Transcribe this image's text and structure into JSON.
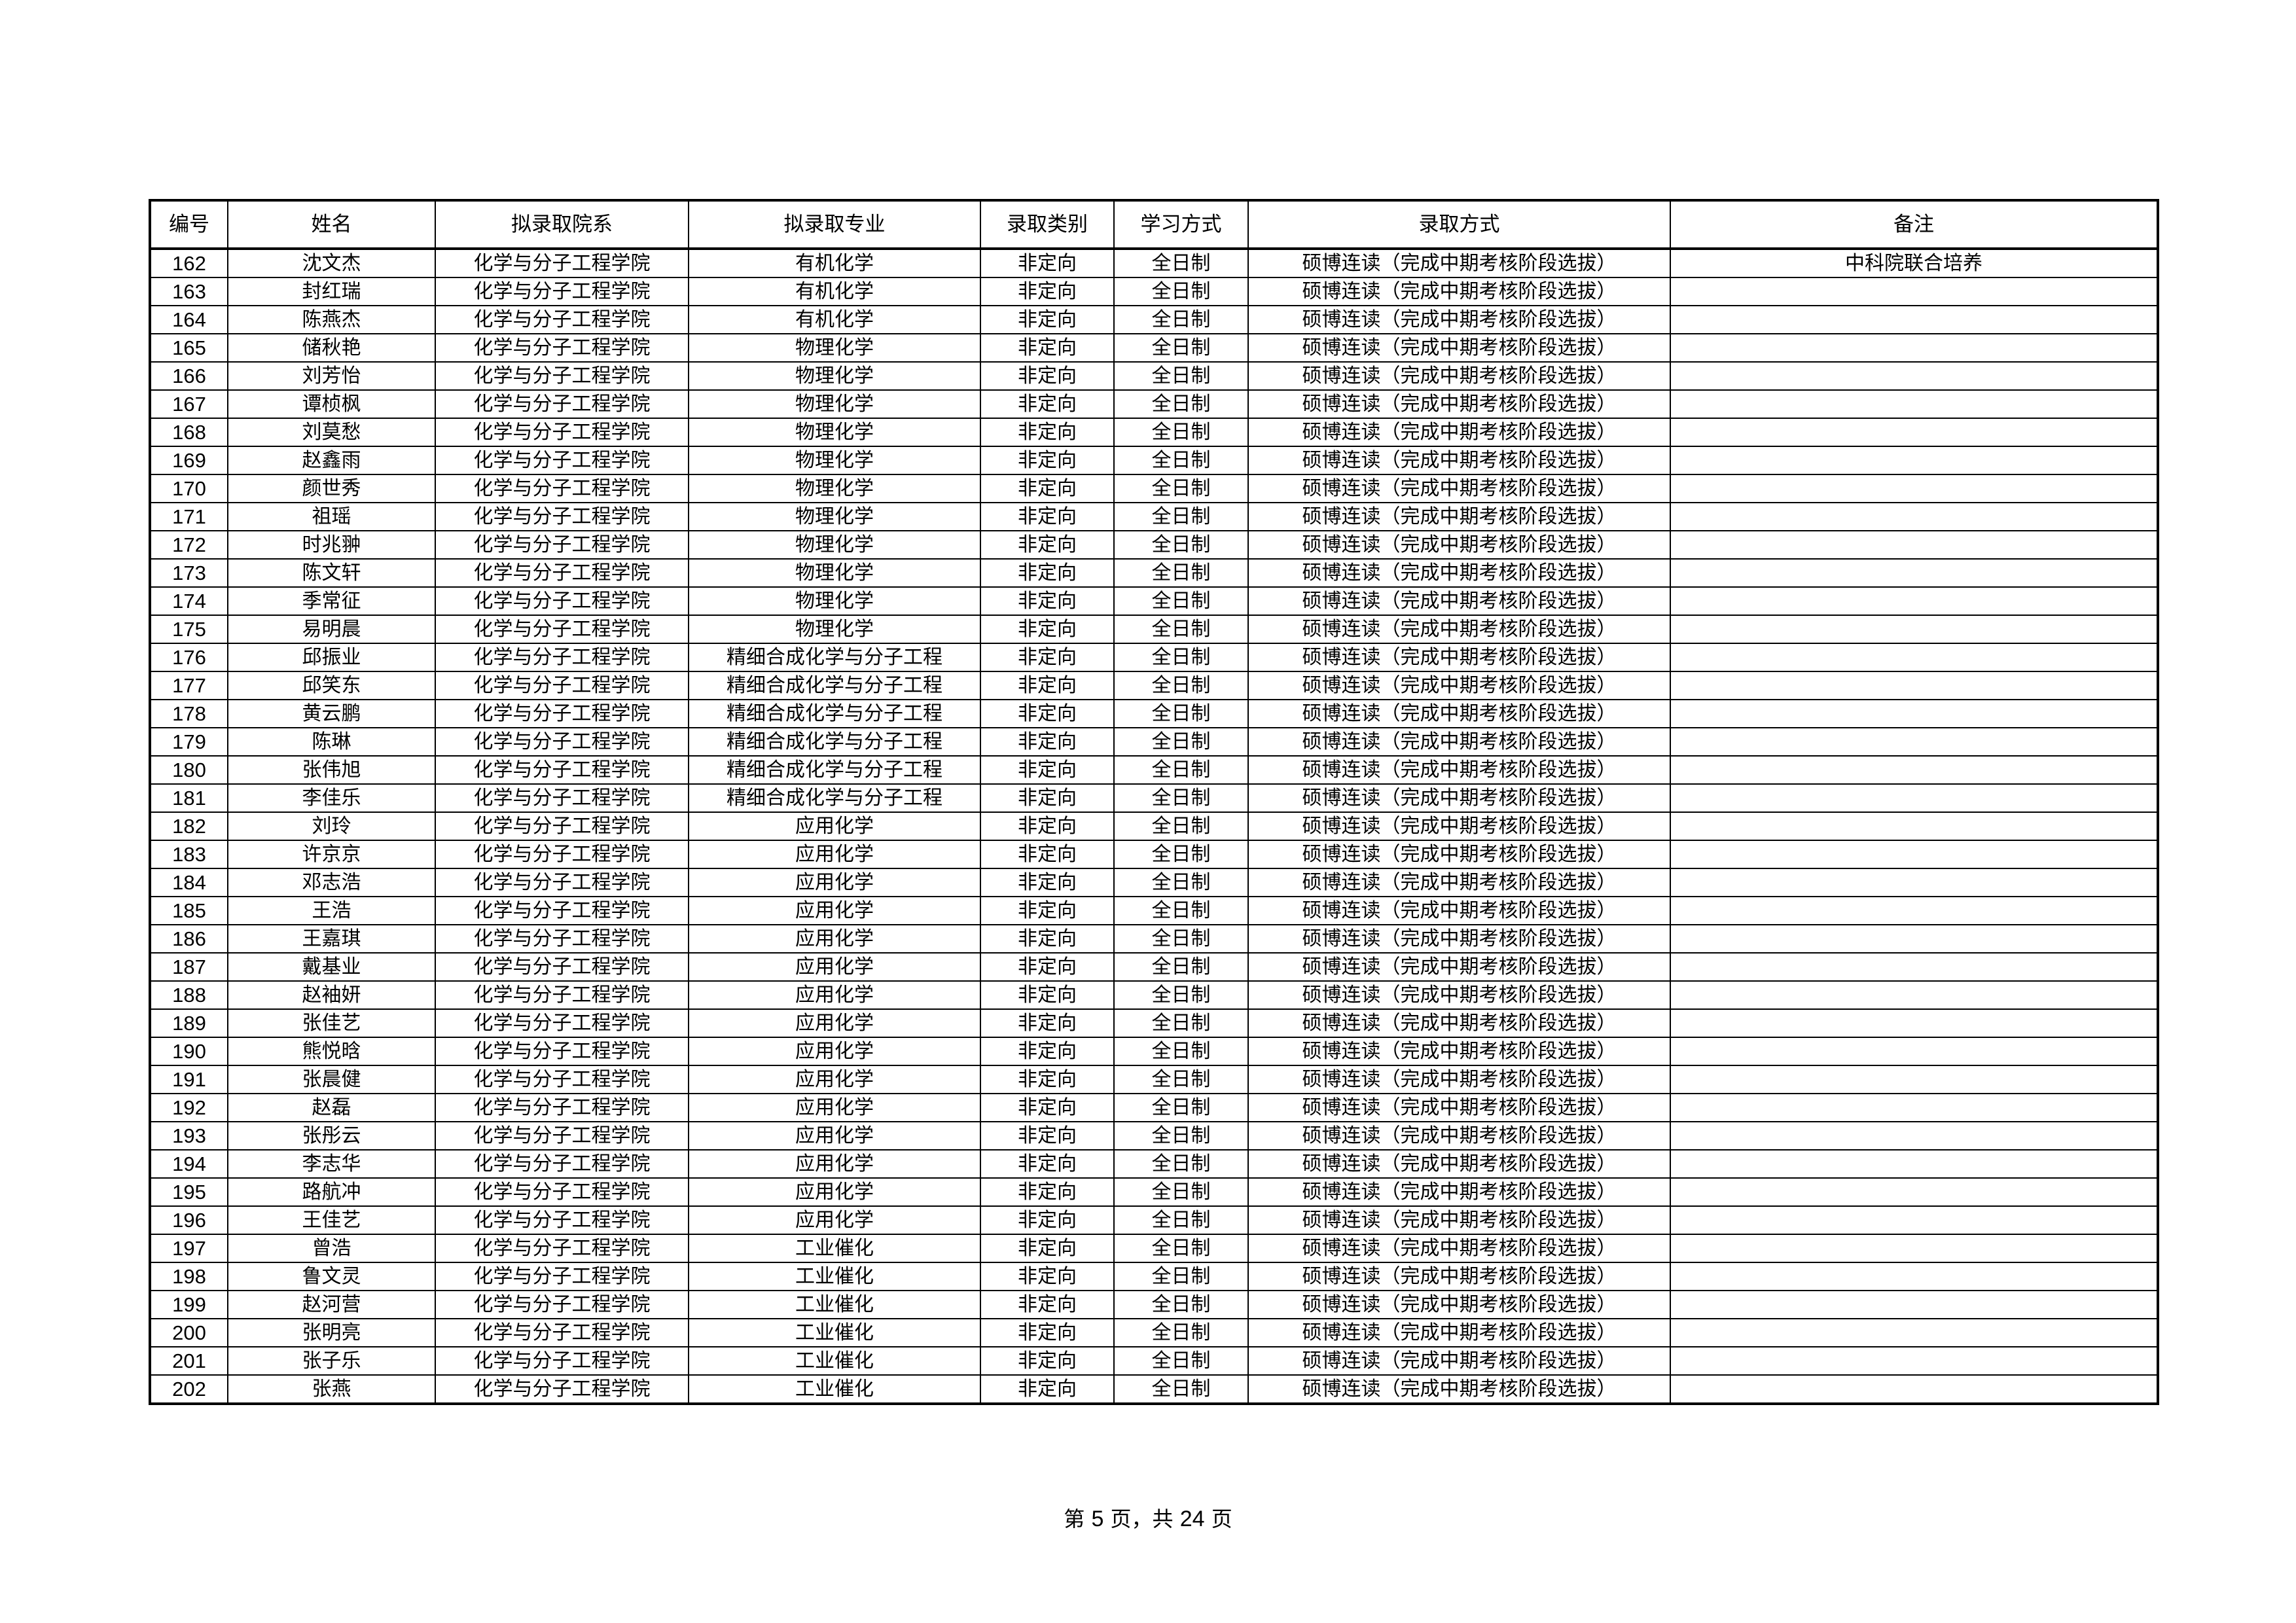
{
  "table": {
    "headers": [
      "编号",
      "姓名",
      "拟录取院系",
      "拟录取专业",
      "录取类别",
      "学习方式",
      "录取方式",
      "备注"
    ],
    "rows": [
      [
        "162",
        "沈文杰",
        "化学与分子工程学院",
        "有机化学",
        "非定向",
        "全日制",
        "硕博连读（完成中期考核阶段选拔）",
        "中科院联合培养"
      ],
      [
        "163",
        "封红瑞",
        "化学与分子工程学院",
        "有机化学",
        "非定向",
        "全日制",
        "硕博连读（完成中期考核阶段选拔）",
        ""
      ],
      [
        "164",
        "陈燕杰",
        "化学与分子工程学院",
        "有机化学",
        "非定向",
        "全日制",
        "硕博连读（完成中期考核阶段选拔）",
        ""
      ],
      [
        "165",
        "储秋艳",
        "化学与分子工程学院",
        "物理化学",
        "非定向",
        "全日制",
        "硕博连读（完成中期考核阶段选拔）",
        ""
      ],
      [
        "166",
        "刘芳怡",
        "化学与分子工程学院",
        "物理化学",
        "非定向",
        "全日制",
        "硕博连读（完成中期考核阶段选拔）",
        ""
      ],
      [
        "167",
        "谭桢枫",
        "化学与分子工程学院",
        "物理化学",
        "非定向",
        "全日制",
        "硕博连读（完成中期考核阶段选拔）",
        ""
      ],
      [
        "168",
        "刘莫愁",
        "化学与分子工程学院",
        "物理化学",
        "非定向",
        "全日制",
        "硕博连读（完成中期考核阶段选拔）",
        ""
      ],
      [
        "169",
        "赵鑫雨",
        "化学与分子工程学院",
        "物理化学",
        "非定向",
        "全日制",
        "硕博连读（完成中期考核阶段选拔）",
        ""
      ],
      [
        "170",
        "颜世秀",
        "化学与分子工程学院",
        "物理化学",
        "非定向",
        "全日制",
        "硕博连读（完成中期考核阶段选拔）",
        ""
      ],
      [
        "171",
        "祖瑶",
        "化学与分子工程学院",
        "物理化学",
        "非定向",
        "全日制",
        "硕博连读（完成中期考核阶段选拔）",
        ""
      ],
      [
        "172",
        "时兆翀",
        "化学与分子工程学院",
        "物理化学",
        "非定向",
        "全日制",
        "硕博连读（完成中期考核阶段选拔）",
        ""
      ],
      [
        "173",
        "陈文轩",
        "化学与分子工程学院",
        "物理化学",
        "非定向",
        "全日制",
        "硕博连读（完成中期考核阶段选拔）",
        ""
      ],
      [
        "174",
        "季常征",
        "化学与分子工程学院",
        "物理化学",
        "非定向",
        "全日制",
        "硕博连读（完成中期考核阶段选拔）",
        ""
      ],
      [
        "175",
        "易明晨",
        "化学与分子工程学院",
        "物理化学",
        "非定向",
        "全日制",
        "硕博连读（完成中期考核阶段选拔）",
        ""
      ],
      [
        "176",
        "邱振业",
        "化学与分子工程学院",
        "精细合成化学与分子工程",
        "非定向",
        "全日制",
        "硕博连读（完成中期考核阶段选拔）",
        ""
      ],
      [
        "177",
        "邱笑东",
        "化学与分子工程学院",
        "精细合成化学与分子工程",
        "非定向",
        "全日制",
        "硕博连读（完成中期考核阶段选拔）",
        ""
      ],
      [
        "178",
        "黄云鹏",
        "化学与分子工程学院",
        "精细合成化学与分子工程",
        "非定向",
        "全日制",
        "硕博连读（完成中期考核阶段选拔）",
        ""
      ],
      [
        "179",
        "陈琳",
        "化学与分子工程学院",
        "精细合成化学与分子工程",
        "非定向",
        "全日制",
        "硕博连读（完成中期考核阶段选拔）",
        ""
      ],
      [
        "180",
        "张伟旭",
        "化学与分子工程学院",
        "精细合成化学与分子工程",
        "非定向",
        "全日制",
        "硕博连读（完成中期考核阶段选拔）",
        ""
      ],
      [
        "181",
        "李佳乐",
        "化学与分子工程学院",
        "精细合成化学与分子工程",
        "非定向",
        "全日制",
        "硕博连读（完成中期考核阶段选拔）",
        ""
      ],
      [
        "182",
        "刘玲",
        "化学与分子工程学院",
        "应用化学",
        "非定向",
        "全日制",
        "硕博连读（完成中期考核阶段选拔）",
        ""
      ],
      [
        "183",
        "许京京",
        "化学与分子工程学院",
        "应用化学",
        "非定向",
        "全日制",
        "硕博连读（完成中期考核阶段选拔）",
        ""
      ],
      [
        "184",
        "邓志浩",
        "化学与分子工程学院",
        "应用化学",
        "非定向",
        "全日制",
        "硕博连读（完成中期考核阶段选拔）",
        ""
      ],
      [
        "185",
        "王浩",
        "化学与分子工程学院",
        "应用化学",
        "非定向",
        "全日制",
        "硕博连读（完成中期考核阶段选拔）",
        ""
      ],
      [
        "186",
        "王嘉琪",
        "化学与分子工程学院",
        "应用化学",
        "非定向",
        "全日制",
        "硕博连读（完成中期考核阶段选拔）",
        ""
      ],
      [
        "187",
        "戴基业",
        "化学与分子工程学院",
        "应用化学",
        "非定向",
        "全日制",
        "硕博连读（完成中期考核阶段选拔）",
        ""
      ],
      [
        "188",
        "赵袖妍",
        "化学与分子工程学院",
        "应用化学",
        "非定向",
        "全日制",
        "硕博连读（完成中期考核阶段选拔）",
        ""
      ],
      [
        "189",
        "张佳艺",
        "化学与分子工程学院",
        "应用化学",
        "非定向",
        "全日制",
        "硕博连读（完成中期考核阶段选拔）",
        ""
      ],
      [
        "190",
        "熊悦晗",
        "化学与分子工程学院",
        "应用化学",
        "非定向",
        "全日制",
        "硕博连读（完成中期考核阶段选拔）",
        ""
      ],
      [
        "191",
        "张晨健",
        "化学与分子工程学院",
        "应用化学",
        "非定向",
        "全日制",
        "硕博连读（完成中期考核阶段选拔）",
        ""
      ],
      [
        "192",
        "赵磊",
        "化学与分子工程学院",
        "应用化学",
        "非定向",
        "全日制",
        "硕博连读（完成中期考核阶段选拔）",
        ""
      ],
      [
        "193",
        "张彤云",
        "化学与分子工程学院",
        "应用化学",
        "非定向",
        "全日制",
        "硕博连读（完成中期考核阶段选拔）",
        ""
      ],
      [
        "194",
        "李志华",
        "化学与分子工程学院",
        "应用化学",
        "非定向",
        "全日制",
        "硕博连读（完成中期考核阶段选拔）",
        ""
      ],
      [
        "195",
        "路航冲",
        "化学与分子工程学院",
        "应用化学",
        "非定向",
        "全日制",
        "硕博连读（完成中期考核阶段选拔）",
        ""
      ],
      [
        "196",
        "王佳艺",
        "化学与分子工程学院",
        "应用化学",
        "非定向",
        "全日制",
        "硕博连读（完成中期考核阶段选拔）",
        ""
      ],
      [
        "197",
        "曾浩",
        "化学与分子工程学院",
        "工业催化",
        "非定向",
        "全日制",
        "硕博连读（完成中期考核阶段选拔）",
        ""
      ],
      [
        "198",
        "鲁文灵",
        "化学与分子工程学院",
        "工业催化",
        "非定向",
        "全日制",
        "硕博连读（完成中期考核阶段选拔）",
        ""
      ],
      [
        "199",
        "赵河营",
        "化学与分子工程学院",
        "工业催化",
        "非定向",
        "全日制",
        "硕博连读（完成中期考核阶段选拔）",
        ""
      ],
      [
        "200",
        "张明亮",
        "化学与分子工程学院",
        "工业催化",
        "非定向",
        "全日制",
        "硕博连读（完成中期考核阶段选拔）",
        ""
      ],
      [
        "201",
        "张子乐",
        "化学与分子工程学院",
        "工业催化",
        "非定向",
        "全日制",
        "硕博连读（完成中期考核阶段选拔）",
        ""
      ],
      [
        "202",
        "张燕",
        "化学与分子工程学院",
        "工业催化",
        "非定向",
        "全日制",
        "硕博连读（完成中期考核阶段选拔）",
        ""
      ]
    ]
  },
  "footer": {
    "prefix": "第",
    "page": "5",
    "middle": "页，共",
    "total": "24",
    "suffix": "页"
  }
}
